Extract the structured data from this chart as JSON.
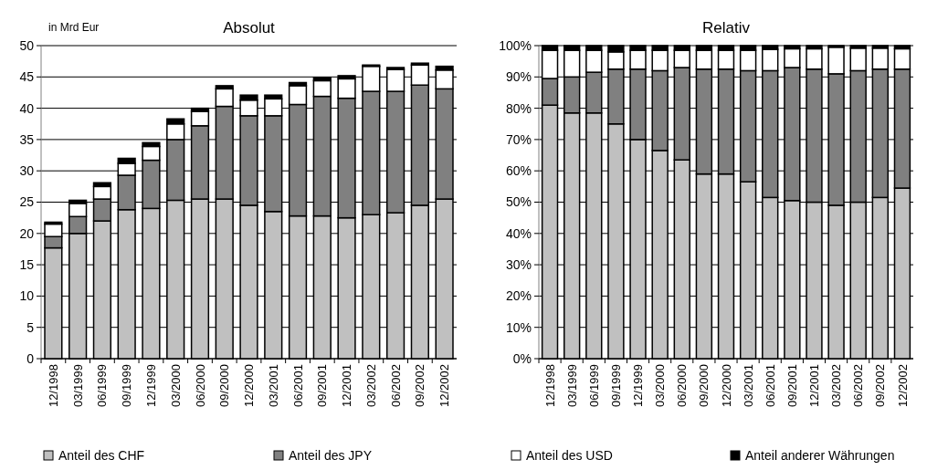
{
  "chart_data": [
    {
      "type": "bar",
      "title": "Absolut",
      "ylabel": "in Mrd Eur",
      "stacked": true,
      "grid": "y",
      "legend": "bottom",
      "categories": [
        "12/1998",
        "03/1999",
        "06/1999",
        "09/1999",
        "12/1999",
        "03/2000",
        "06/2000",
        "09/2000",
        "12/2000",
        "03/2001",
        "06/2001",
        "09/2001",
        "12/2001",
        "03/2002",
        "06/2002",
        "09/2002",
        "12/2002"
      ],
      "ylim": [
        0,
        50
      ],
      "yticks": [
        0,
        5,
        10,
        15,
        20,
        25,
        30,
        35,
        40,
        45,
        50
      ],
      "series": [
        {
          "name": "Anteil des CHF",
          "color": "#c0c0c0",
          "values": [
            17.7,
            20.0,
            22.0,
            23.8,
            24.0,
            25.3,
            25.5,
            25.5,
            24.5,
            23.5,
            22.8,
            22.8,
            22.5,
            23.0,
            23.3,
            24.5,
            25.5
          ]
        },
        {
          "name": "Anteil des JPY",
          "color": "#808080",
          "values": [
            1.8,
            2.7,
            3.5,
            5.5,
            7.7,
            9.7,
            11.7,
            14.8,
            14.3,
            15.3,
            17.8,
            19.1,
            19.1,
            19.7,
            19.4,
            19.2,
            17.6
          ]
        },
        {
          "name": "Anteil des USD",
          "color": "#ffffff",
          "values": [
            2.0,
            2.1,
            2.0,
            1.9,
            2.2,
            2.5,
            2.3,
            2.8,
            2.5,
            2.7,
            3.0,
            2.5,
            3.1,
            4.0,
            3.5,
            3.2,
            3.0
          ]
        },
        {
          "name": "Anteil anderer Währungen",
          "color": "#000000",
          "values": [
            0.3,
            0.5,
            0.6,
            0.8,
            0.6,
            0.8,
            0.5,
            0.5,
            0.8,
            0.6,
            0.5,
            0.5,
            0.5,
            0.2,
            0.3,
            0.3,
            0.6
          ]
        }
      ]
    },
    {
      "type": "bar",
      "title": "Relativ",
      "stacked": true,
      "grid": "y",
      "categories": [
        "12/1998",
        "03/1999",
        "06/1999",
        "09/1999",
        "12/1999",
        "03/2000",
        "06/2000",
        "09/2000",
        "12/2000",
        "03/2001",
        "06/2001",
        "09/2001",
        "12/2001",
        "03/2002",
        "06/2002",
        "09/2002",
        "12/2002"
      ],
      "ylim": [
        0,
        100
      ],
      "yticks": [
        {
          "value": 0,
          "label": "0%"
        },
        {
          "value": 10,
          "label": "10%"
        },
        {
          "value": 20,
          "label": "20%"
        },
        {
          "value": 30,
          "label": "30%"
        },
        {
          "value": 40,
          "label": "40%"
        },
        {
          "value": 50,
          "label": "50%"
        },
        {
          "value": 60,
          "label": "60%"
        },
        {
          "value": 70,
          "label": "70%"
        },
        {
          "value": 80,
          "label": "80%"
        },
        {
          "value": 90,
          "label": "90%"
        },
        {
          "value": 100,
          "label": "100%"
        }
      ],
      "series": [
        {
          "color": "#c0c0c0",
          "values": [
            81,
            78.5,
            78.5,
            75,
            70,
            66.5,
            63.5,
            59,
            59,
            56.5,
            51.5,
            50.5,
            50,
            49,
            50,
            51.5,
            54.5
          ]
        },
        {
          "color": "#808080",
          "values": [
            8.5,
            11.5,
            13,
            17.5,
            22.5,
            25.5,
            29.5,
            33.5,
            33.5,
            35.5,
            40.5,
            42.5,
            42.5,
            42,
            42,
            41,
            38
          ]
        },
        {
          "color": "#ffffff",
          "values": [
            9,
            8.5,
            7,
            5.5,
            6,
            6.5,
            5.5,
            6,
            6,
            6.5,
            6.8,
            6,
            6.5,
            8.5,
            7.2,
            6.7,
            6.5
          ]
        },
        {
          "color": "#000000",
          "values": [
            1.5,
            1.5,
            1.5,
            2,
            1.5,
            1.5,
            1.5,
            1.5,
            1.5,
            1.5,
            1.2,
            1,
            1,
            0.5,
            0.8,
            0.8,
            1
          ]
        }
      ]
    }
  ]
}
